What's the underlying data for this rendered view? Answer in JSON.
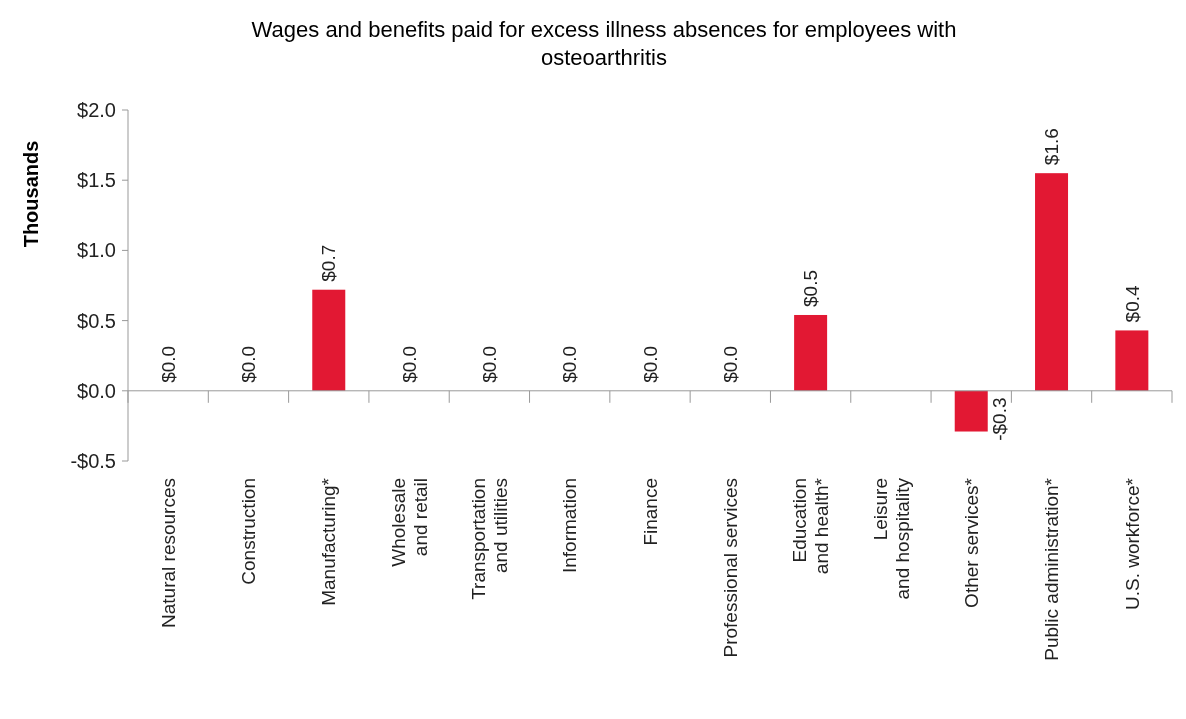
{
  "chart_data": {
    "type": "bar",
    "title": "Wages and benefits paid for excess illness absences for employees with osteoarthritis",
    "ylabel": "Thousands",
    "categories": [
      "Natural resources",
      "Construction",
      "Manufacturing*",
      "Wholesale\nand retail",
      "Transportation\nand utilities",
      "Information",
      "Finance",
      "Professional services",
      "Education\nand health*",
      "Leisure\nand hospitality",
      "Other services*",
      "Public administration*",
      "U.S. workforce*"
    ],
    "values": [
      0,
      0,
      0.72,
      0,
      0,
      0,
      0,
      0,
      0.54,
      null,
      -0.29,
      1.55,
      0.43
    ],
    "value_labels": [
      "$0.0",
      "$0.0",
      "$0.7",
      "$0.0",
      "$0.0",
      "$0.0",
      "$0.0",
      "$0.0",
      "$0.5",
      null,
      "-$0.3",
      "$1.6",
      "$0.4"
    ],
    "color": "#e21833",
    "ylim": [
      -0.5,
      2.0
    ],
    "yticks": [
      {
        "value": -0.5,
        "label": "-$0.5"
      },
      {
        "value": 0,
        "label": "$0.0"
      },
      {
        "value": 0.5,
        "label": "$0.5"
      },
      {
        "value": 1.0,
        "label": "$1.0"
      },
      {
        "value": 1.5,
        "label": "$1.5"
      },
      {
        "value": 2.0,
        "label": "$2.0"
      }
    ]
  }
}
